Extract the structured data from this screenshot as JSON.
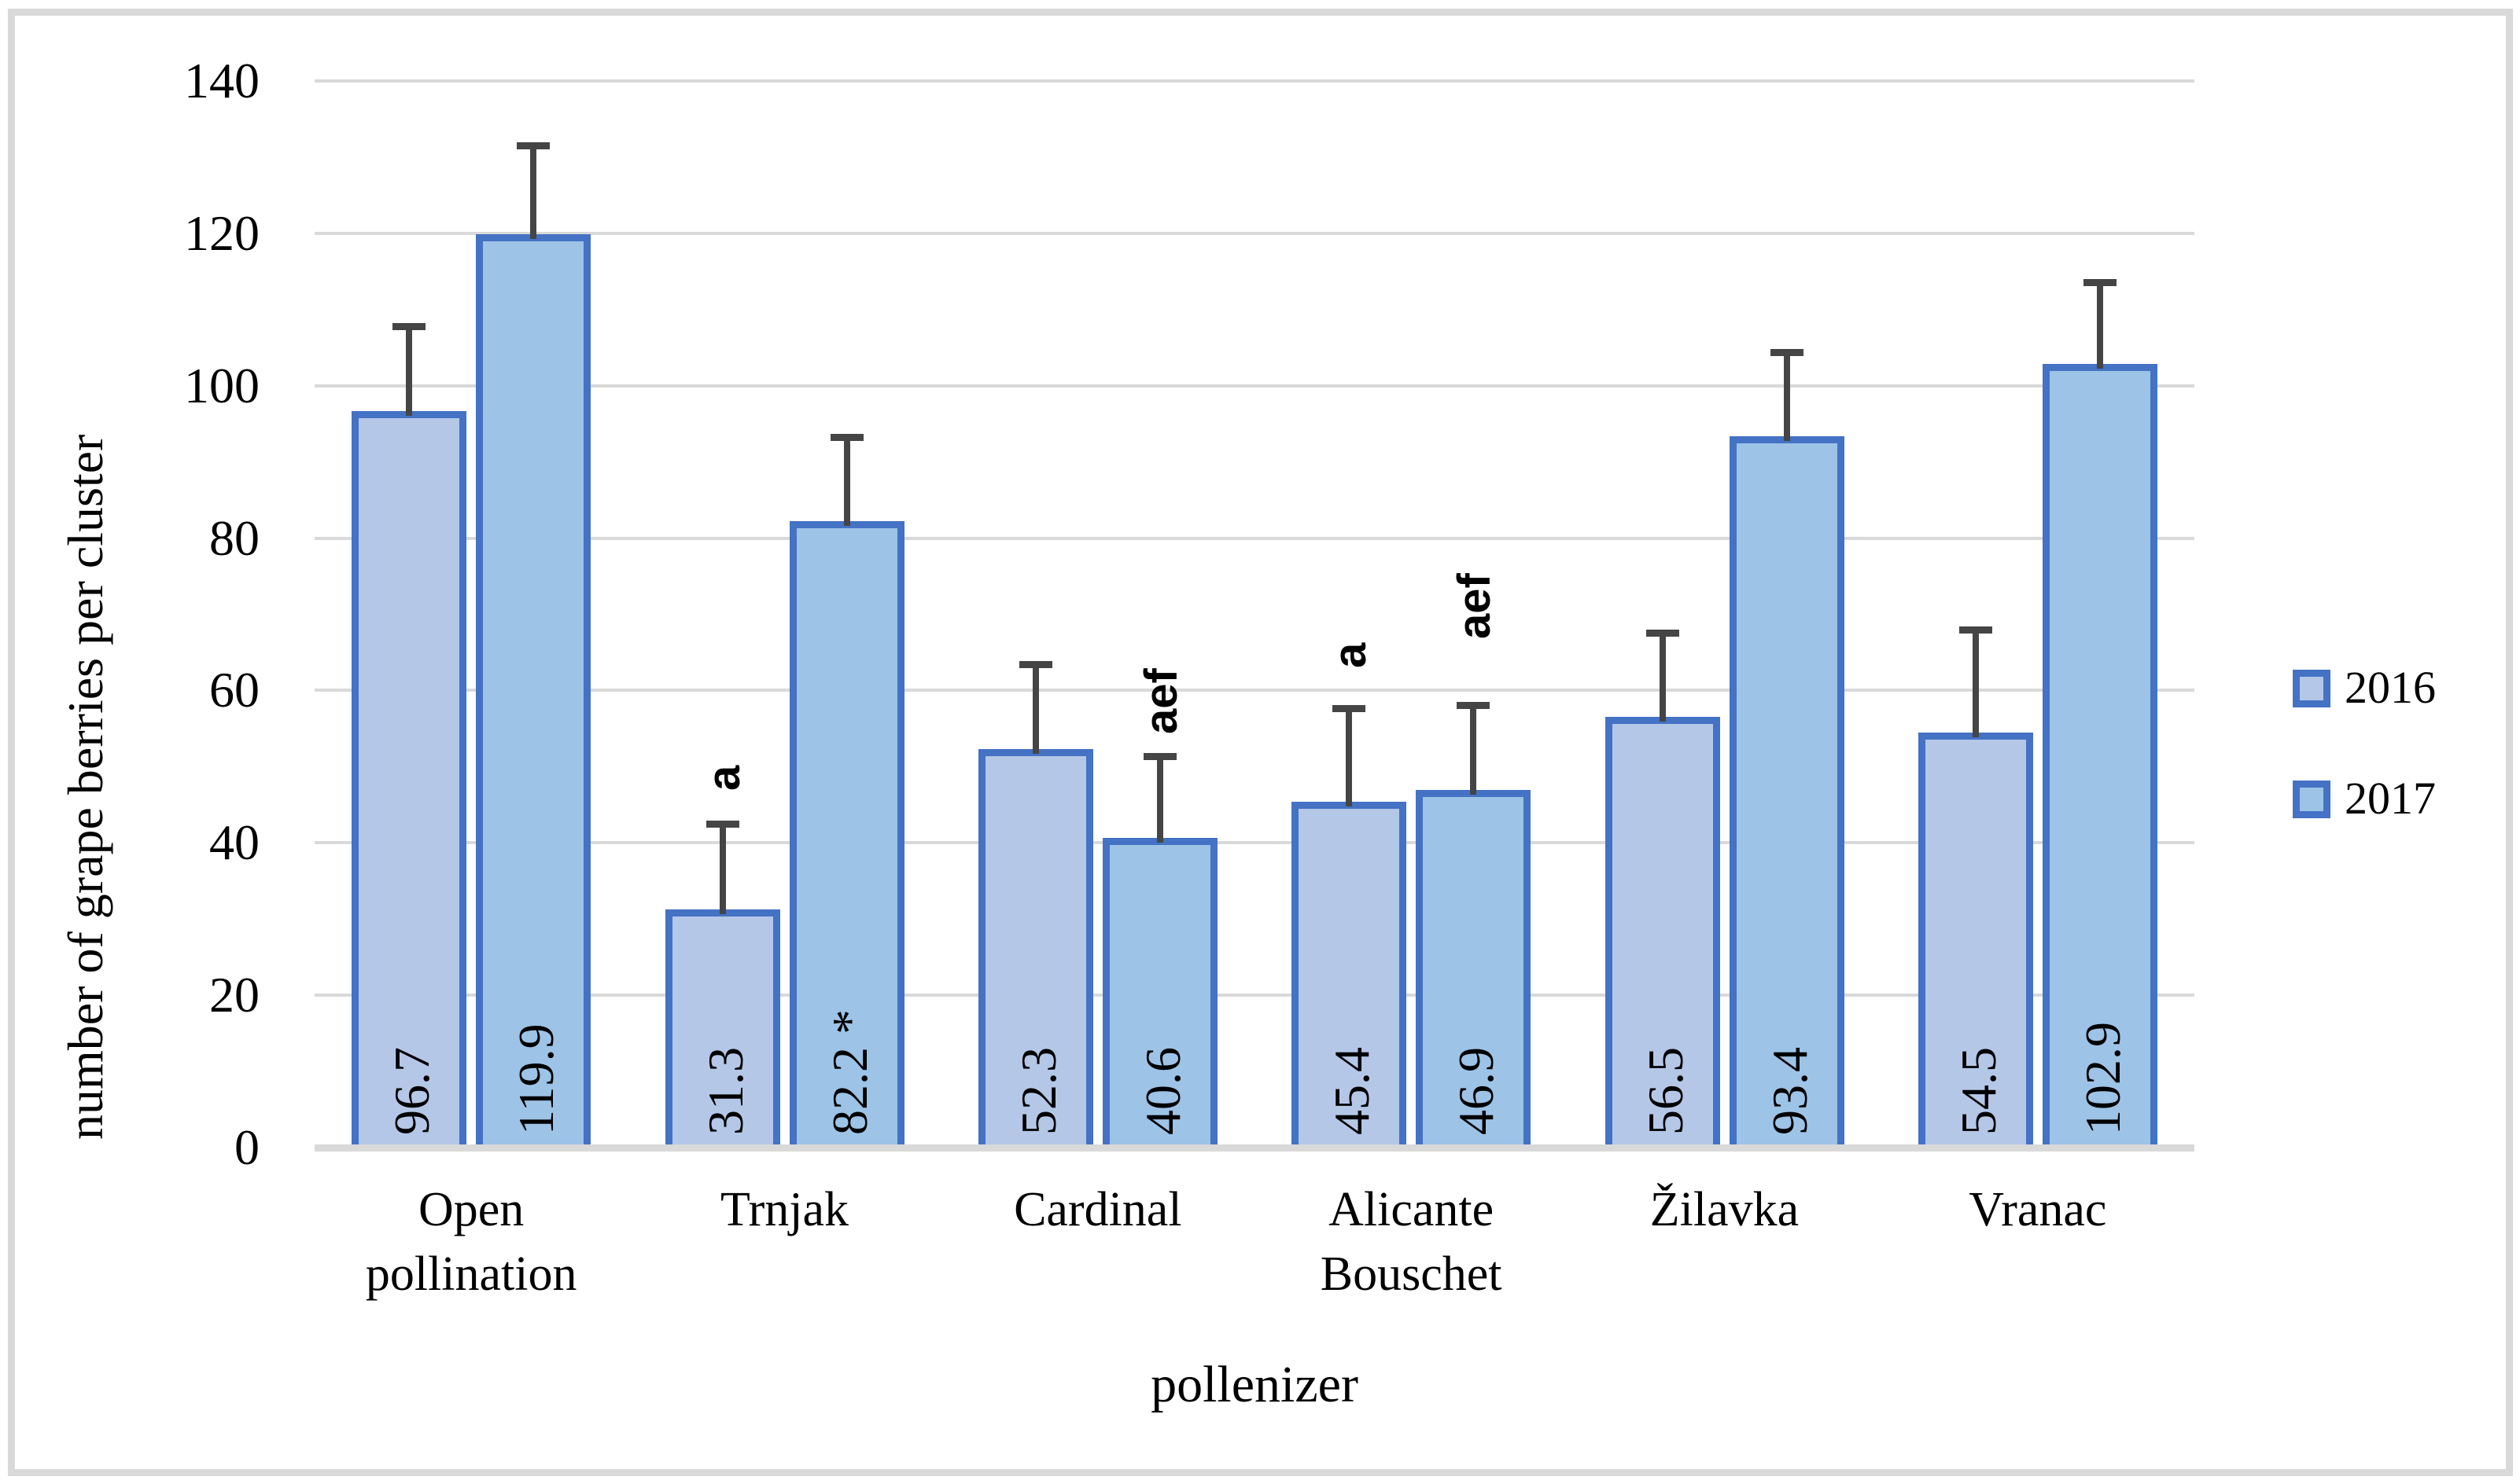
{
  "figure": {
    "background": "#FFFFFF",
    "border_color": "#D9D9D9"
  },
  "chart_data": {
    "type": "bar",
    "title": "",
    "xlabel": "pollenizer",
    "ylabel": "number of grape berries per cluster",
    "ylim": [
      0,
      140
    ],
    "ytick_step": 20,
    "yticks": [
      0,
      20,
      40,
      60,
      80,
      100,
      120,
      140
    ],
    "grid": "horizontal",
    "legend_position": "center-right",
    "categories": [
      "Open pollination",
      "Trnjak",
      "Cardinal",
      "Alicante Bouschet",
      "Žilavka",
      "Vranac"
    ],
    "category_label_lines": [
      [
        "Open",
        "pollination"
      ],
      [
        "Trnjak"
      ],
      [
        "Cardinal"
      ],
      [
        "Alicante",
        "Bouschet"
      ],
      [
        "Žilavka"
      ],
      [
        "Vranac"
      ]
    ],
    "series": [
      {
        "name": "2016",
        "fill": "#B4C7E7",
        "border": "#4472C4",
        "values": [
          96.7,
          31.3,
          52.3,
          45.4,
          56.5,
          54.5
        ],
        "value_labels": [
          "96.7",
          "31.3",
          "52.3",
          "45.4",
          "56.5",
          "54.5"
        ],
        "error_upper": [
          11.1,
          11.2,
          11.1,
          12.3,
          11.1,
          13.5
        ],
        "sig_letters": [
          "",
          "a",
          "",
          "a",
          "",
          ""
        ],
        "sig_letter_gap_px": [
          0,
          42,
          0,
          51,
          0,
          0
        ],
        "in_bar_markers": [
          "",
          "",
          "",
          "",
          "",
          ""
        ]
      },
      {
        "name": "2017",
        "fill": "#9DC3E6",
        "border": "#4472C4",
        "values": [
          119.9,
          82.2,
          40.6,
          46.9,
          93.4,
          102.9
        ],
        "value_labels": [
          "119.9",
          "82.2",
          "40.6",
          "46.9",
          "93.4",
          "102.9"
        ],
        "error_upper": [
          11.6,
          11.1,
          10.8,
          11.2,
          11.0,
          10.7
        ],
        "sig_letters": [
          "",
          "",
          "aef",
          "aef",
          "",
          ""
        ],
        "sig_letter_gap_px": [
          0,
          0,
          28,
          84,
          0,
          0
        ],
        "in_bar_markers": [
          "",
          "*",
          "",
          "",
          "",
          ""
        ]
      }
    ],
    "legend": [
      "2016",
      "2017"
    ],
    "colors": {
      "error_bar": "#454545",
      "gridline": "#D9D9D9",
      "axis_line": "#D9D9D9",
      "text": "#000000",
      "bar_border": "#4472C4"
    }
  }
}
